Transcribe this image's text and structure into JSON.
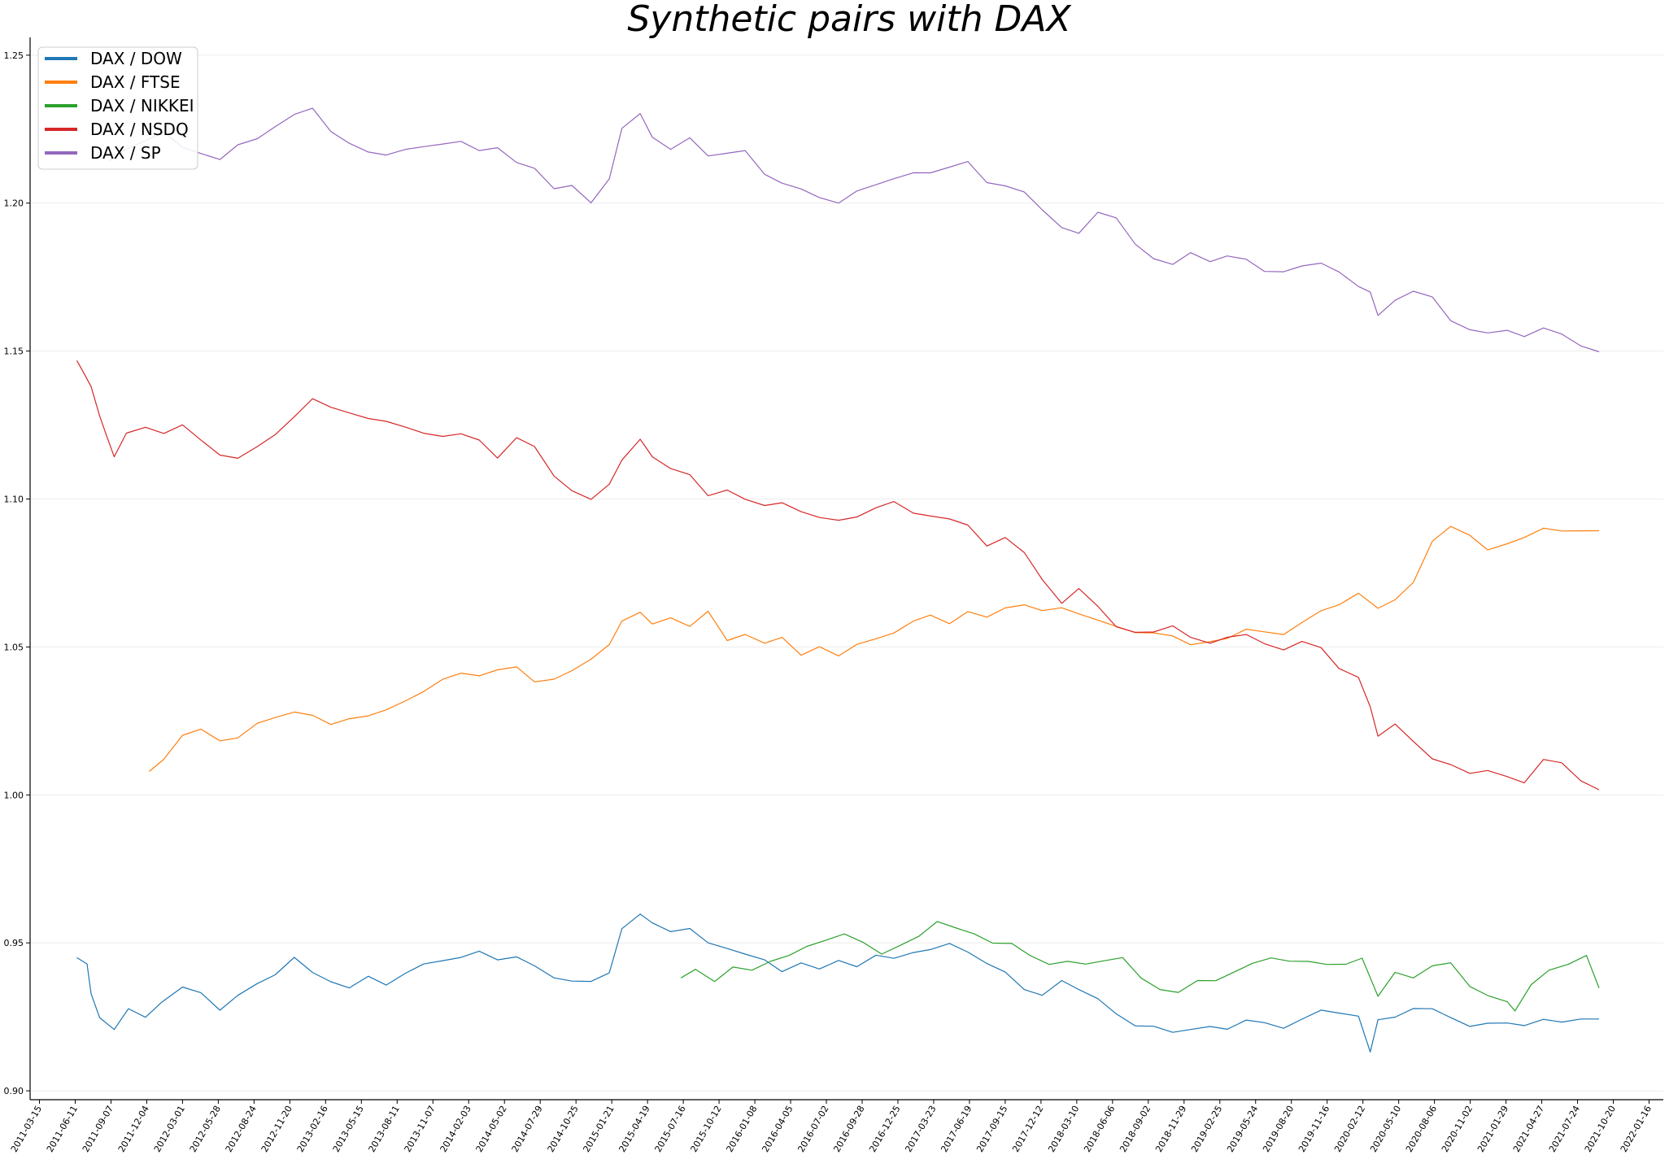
{
  "chart_data": {
    "type": "line",
    "title": "Synthetic pairs with DAX",
    "xlabel": "",
    "ylabel": "",
    "ylim": [
      0.897,
      1.256
    ],
    "xlim": [
      "2011-02-20",
      "2022-02-20"
    ],
    "grid": "horizontal-faint",
    "legend_placement": "top-left",
    "yticks": [
      "0.90",
      "0.95",
      "1.00",
      "1.05",
      "1.10",
      "1.15",
      "1.20",
      "1.25"
    ],
    "ytick_values": [
      0.9,
      0.95,
      1.0,
      1.05,
      1.1,
      1.15,
      1.2,
      1.25
    ],
    "xticks": [
      "2011-03-15",
      "2011-06-11",
      "2011-09-07",
      "2011-12-04",
      "2012-03-01",
      "2012-05-28",
      "2012-08-24",
      "2012-11-20",
      "2013-02-16",
      "2013-05-15",
      "2013-08-11",
      "2013-11-07",
      "2014-02-03",
      "2014-05-02",
      "2014-07-29",
      "2014-10-25",
      "2015-01-21",
      "2015-04-19",
      "2015-07-16",
      "2015-10-12",
      "2016-01-08",
      "2016-04-05",
      "2016-07-02",
      "2016-09-28",
      "2016-12-25",
      "2017-03-23",
      "2017-06-19",
      "2017-09-15",
      "2017-12-12",
      "2018-03-10",
      "2018-06-06",
      "2018-09-02",
      "2018-11-29",
      "2019-02-25",
      "2019-05-24",
      "2019-08-20",
      "2019-11-16",
      "2020-02-12",
      "2020-05-10",
      "2020-08-06",
      "2020-11-02",
      "2021-01-29",
      "2021-04-27",
      "2021-07-24",
      "2021-10-20",
      "2022-01-16"
    ],
    "series": [
      {
        "name": "DAX / DOW",
        "color": "#1f77b4",
        "x": [
          "2011-06-15",
          "2011-07-10",
          "2011-07-20",
          "2011-08-10",
          "2011-09-15",
          "2011-10-20",
          "2011-12-01",
          "2012-01-10",
          "2012-03-01",
          "2012-04-15",
          "2012-06-01",
          "2012-07-15",
          "2012-09-01",
          "2012-10-15",
          "2012-12-01",
          "2013-01-15",
          "2013-03-01",
          "2013-04-15",
          "2013-06-01",
          "2013-07-15",
          "2013-09-01",
          "2013-10-15",
          "2013-12-01",
          "2014-01-15",
          "2014-03-01",
          "2014-04-15",
          "2014-06-01",
          "2014-07-15",
          "2014-09-01",
          "2014-10-15",
          "2014-12-01",
          "2015-01-15",
          "2015-02-15",
          "2015-04-01",
          "2015-05-01",
          "2015-06-15",
          "2015-08-01",
          "2015-09-15",
          "2015-11-01",
          "2015-12-15",
          "2016-02-01",
          "2016-03-15",
          "2016-05-01",
          "2016-06-15",
          "2016-08-01",
          "2016-09-15",
          "2016-11-01",
          "2016-12-15",
          "2017-02-01",
          "2017-03-15",
          "2017-05-01",
          "2017-06-15",
          "2017-08-01",
          "2017-09-15",
          "2017-11-01",
          "2017-12-15",
          "2018-02-01",
          "2018-03-15",
          "2018-05-01",
          "2018-06-15",
          "2018-08-01",
          "2018-09-15",
          "2018-11-01",
          "2018-12-15",
          "2019-02-01",
          "2019-03-15",
          "2019-05-01",
          "2019-06-15",
          "2019-08-01",
          "2019-09-15",
          "2019-11-01",
          "2019-12-15",
          "2020-02-01",
          "2020-03-01",
          "2020-03-20",
          "2020-05-01",
          "2020-06-15",
          "2020-08-01",
          "2020-09-15",
          "2020-11-01",
          "2020-12-15",
          "2021-02-01",
          "2021-03-15",
          "2021-05-01",
          "2021-06-15",
          "2021-08-01",
          "2021-09-15"
        ],
        "values": [
          0.945,
          0.943,
          0.933,
          0.925,
          0.921,
          0.928,
          0.925,
          0.93,
          0.935,
          0.933,
          0.927,
          0.932,
          0.936,
          0.939,
          0.945,
          0.94,
          0.937,
          0.935,
          0.939,
          0.936,
          0.94,
          0.943,
          0.944,
          0.945,
          0.947,
          0.944,
          0.945,
          0.942,
          0.938,
          0.937,
          0.937,
          0.94,
          0.955,
          0.96,
          0.957,
          0.954,
          0.955,
          0.95,
          0.948,
          0.946,
          0.944,
          0.94,
          0.943,
          0.941,
          0.944,
          0.942,
          0.946,
          0.945,
          0.947,
          0.948,
          0.95,
          0.947,
          0.943,
          0.94,
          0.934,
          0.932,
          0.937,
          0.934,
          0.931,
          0.926,
          0.922,
          0.922,
          0.92,
          0.921,
          0.922,
          0.921,
          0.924,
          0.923,
          0.921,
          0.924,
          0.927,
          0.926,
          0.925,
          0.913,
          0.924,
          0.925,
          0.928,
          0.928,
          0.925,
          0.922,
          0.923,
          0.923,
          0.922,
          0.924,
          0.923,
          0.924,
          0.924
        ]
      },
      {
        "name": "DAX / FTSE",
        "color": "#ff7f0e",
        "x": [
          "2011-12-10",
          "2012-01-15",
          "2012-03-01",
          "2012-04-15",
          "2012-06-01",
          "2012-07-15",
          "2012-09-01",
          "2012-10-15",
          "2012-12-01",
          "2013-01-15",
          "2013-03-01",
          "2013-04-15",
          "2013-06-01",
          "2013-07-15",
          "2013-09-01",
          "2013-10-15",
          "2013-12-01",
          "2014-01-15",
          "2014-03-01",
          "2014-04-15",
          "2014-06-01",
          "2014-07-15",
          "2014-09-01",
          "2014-10-15",
          "2014-12-01",
          "2015-01-15",
          "2015-02-15",
          "2015-04-01",
          "2015-05-01",
          "2015-06-15",
          "2015-08-01",
          "2015-09-15",
          "2015-11-01",
          "2015-12-15",
          "2016-02-01",
          "2016-03-15",
          "2016-05-01",
          "2016-06-15",
          "2016-08-01",
          "2016-09-15",
          "2016-11-01",
          "2016-12-15",
          "2017-02-01",
          "2017-03-15",
          "2017-05-01",
          "2017-06-15",
          "2017-08-01",
          "2017-09-15",
          "2017-11-01",
          "2017-12-15",
          "2018-02-01",
          "2018-03-15",
          "2018-05-01",
          "2018-06-15",
          "2018-08-01",
          "2018-09-15",
          "2018-11-01",
          "2018-12-15",
          "2019-02-01",
          "2019-03-15",
          "2019-05-01",
          "2019-06-15",
          "2019-08-01",
          "2019-09-15",
          "2019-11-01",
          "2019-12-15",
          "2020-02-01",
          "2020-03-20",
          "2020-05-01",
          "2020-06-15",
          "2020-08-01",
          "2020-09-15",
          "2020-11-01",
          "2020-12-15",
          "2021-02-01",
          "2021-03-15",
          "2021-05-01",
          "2021-06-15",
          "2021-08-01",
          "2021-09-15"
        ],
        "values": [
          1.008,
          1.012,
          1.02,
          1.022,
          1.018,
          1.019,
          1.024,
          1.026,
          1.028,
          1.027,
          1.024,
          1.026,
          1.027,
          1.029,
          1.032,
          1.035,
          1.039,
          1.041,
          1.04,
          1.042,
          1.043,
          1.038,
          1.039,
          1.042,
          1.046,
          1.051,
          1.059,
          1.062,
          1.058,
          1.06,
          1.057,
          1.062,
          1.052,
          1.054,
          1.051,
          1.053,
          1.047,
          1.05,
          1.047,
          1.051,
          1.053,
          1.055,
          1.059,
          1.061,
          1.058,
          1.062,
          1.06,
          1.063,
          1.064,
          1.062,
          1.063,
          1.061,
          1.059,
          1.057,
          1.055,
          1.055,
          1.054,
          1.051,
          1.052,
          1.053,
          1.056,
          1.055,
          1.054,
          1.058,
          1.062,
          1.064,
          1.068,
          1.063,
          1.066,
          1.072,
          1.086,
          1.091,
          1.088,
          1.083,
          1.085,
          1.087,
          1.09,
          1.089,
          1.089,
          1.089
        ]
      },
      {
        "name": "DAX / NIKKEI",
        "color": "#2ca02c",
        "x": [
          "2015-07-10",
          "2015-08-15",
          "2015-10-01",
          "2015-11-15",
          "2016-01-01",
          "2016-02-15",
          "2016-04-01",
          "2016-05-15",
          "2016-07-01",
          "2016-08-15",
          "2016-10-01",
          "2016-11-15",
          "2017-01-01",
          "2017-02-15",
          "2017-04-01",
          "2017-05-15",
          "2017-07-01",
          "2017-08-15",
          "2017-10-01",
          "2017-11-15",
          "2018-01-01",
          "2018-02-15",
          "2018-04-01",
          "2018-05-15",
          "2018-07-01",
          "2018-08-15",
          "2018-10-01",
          "2018-11-15",
          "2019-01-01",
          "2019-02-15",
          "2019-04-01",
          "2019-05-15",
          "2019-07-01",
          "2019-08-15",
          "2019-10-01",
          "2019-11-15",
          "2020-01-01",
          "2020-02-10",
          "2020-03-20",
          "2020-05-01",
          "2020-06-15",
          "2020-08-01",
          "2020-09-15",
          "2020-11-01",
          "2020-12-15",
          "2021-02-01",
          "2021-02-20",
          "2021-04-01",
          "2021-05-15",
          "2021-07-01",
          "2021-08-15",
          "2021-09-15"
        ],
        "values": [
          0.938,
          0.941,
          0.937,
          0.942,
          0.941,
          0.944,
          0.946,
          0.949,
          0.951,
          0.953,
          0.95,
          0.946,
          0.949,
          0.952,
          0.957,
          0.955,
          0.953,
          0.95,
          0.95,
          0.946,
          0.943,
          0.944,
          0.943,
          0.944,
          0.945,
          0.938,
          0.934,
          0.933,
          0.937,
          0.937,
          0.94,
          0.943,
          0.945,
          0.944,
          0.944,
          0.943,
          0.943,
          0.945,
          0.932,
          0.94,
          0.938,
          0.942,
          0.943,
          0.935,
          0.932,
          0.93,
          0.927,
          0.936,
          0.941,
          0.943,
          0.946,
          0.935
        ]
      },
      {
        "name": "DAX / NSDQ",
        "color": "#d62728",
        "x": [
          "2011-06-15",
          "2011-07-01",
          "2011-07-20",
          "2011-08-10",
          "2011-08-25",
          "2011-09-15",
          "2011-10-15",
          "2011-12-01",
          "2012-01-15",
          "2012-03-01",
          "2012-04-15",
          "2012-06-01",
          "2012-07-15",
          "2012-09-01",
          "2012-10-15",
          "2012-12-01",
          "2013-01-15",
          "2013-03-01",
          "2013-04-15",
          "2013-06-01",
          "2013-07-15",
          "2013-09-01",
          "2013-10-15",
          "2013-12-01",
          "2014-01-15",
          "2014-03-01",
          "2014-04-15",
          "2014-06-01",
          "2014-07-15",
          "2014-09-01",
          "2014-10-15",
          "2014-12-01",
          "2015-01-15",
          "2015-02-15",
          "2015-04-01",
          "2015-05-01",
          "2015-06-15",
          "2015-08-01",
          "2015-09-15",
          "2015-11-01",
          "2015-12-15",
          "2016-02-01",
          "2016-03-15",
          "2016-05-01",
          "2016-06-15",
          "2016-08-01",
          "2016-09-15",
          "2016-11-01",
          "2016-12-15",
          "2017-02-01",
          "2017-03-15",
          "2017-05-01",
          "2017-06-15",
          "2017-08-01",
          "2017-09-15",
          "2017-11-01",
          "2017-12-15",
          "2018-02-01",
          "2018-03-15",
          "2018-05-01",
          "2018-06-15",
          "2018-08-01",
          "2018-09-15",
          "2018-11-01",
          "2018-12-15",
          "2019-02-01",
          "2019-03-15",
          "2019-05-01",
          "2019-06-15",
          "2019-08-01",
          "2019-09-15",
          "2019-11-01",
          "2019-12-15",
          "2020-02-01",
          "2020-03-01",
          "2020-03-20",
          "2020-05-01",
          "2020-06-15",
          "2020-08-01",
          "2020-09-15",
          "2020-11-01",
          "2020-12-15",
          "2021-02-01",
          "2021-03-15",
          "2021-05-01",
          "2021-06-15",
          "2021-08-01",
          "2021-09-15"
        ],
        "values": [
          1.147,
          1.143,
          1.138,
          1.128,
          1.122,
          1.114,
          1.122,
          1.124,
          1.122,
          1.125,
          1.12,
          1.115,
          1.114,
          1.118,
          1.122,
          1.128,
          1.134,
          1.131,
          1.129,
          1.127,
          1.126,
          1.124,
          1.122,
          1.121,
          1.122,
          1.12,
          1.114,
          1.121,
          1.118,
          1.108,
          1.103,
          1.1,
          1.105,
          1.113,
          1.12,
          1.114,
          1.11,
          1.108,
          1.101,
          1.103,
          1.1,
          1.098,
          1.099,
          1.096,
          1.094,
          1.093,
          1.094,
          1.097,
          1.099,
          1.095,
          1.094,
          1.093,
          1.091,
          1.084,
          1.087,
          1.082,
          1.073,
          1.065,
          1.07,
          1.064,
          1.057,
          1.055,
          1.055,
          1.057,
          1.053,
          1.051,
          1.053,
          1.054,
          1.051,
          1.049,
          1.052,
          1.05,
          1.043,
          1.04,
          1.03,
          1.02,
          1.024,
          1.018,
          1.012,
          1.01,
          1.007,
          1.008,
          1.006,
          1.004,
          1.012,
          1.011,
          1.005,
          1.002
        ]
      },
      {
        "name": "DAX / SP",
        "color": "#9467bd",
        "x": [
          "2011-09-01",
          "2011-10-15",
          "2011-12-01",
          "2012-01-15",
          "2012-03-01",
          "2012-04-15",
          "2012-06-01",
          "2012-07-15",
          "2012-09-01",
          "2012-10-15",
          "2012-12-01",
          "2013-01-15",
          "2013-03-01",
          "2013-04-15",
          "2013-06-01",
          "2013-07-15",
          "2013-09-01",
          "2013-10-15",
          "2013-12-01",
          "2014-01-15",
          "2014-03-01",
          "2014-04-15",
          "2014-06-01",
          "2014-07-15",
          "2014-09-01",
          "2014-10-15",
          "2014-12-01",
          "2015-01-15",
          "2015-02-15",
          "2015-04-01",
          "2015-05-01",
          "2015-06-15",
          "2015-08-01",
          "2015-09-15",
          "2015-11-01",
          "2015-12-15",
          "2016-02-01",
          "2016-03-15",
          "2016-05-01",
          "2016-06-15",
          "2016-08-01",
          "2016-09-15",
          "2016-11-01",
          "2016-12-15",
          "2017-02-01",
          "2017-03-15",
          "2017-05-01",
          "2017-06-15",
          "2017-08-01",
          "2017-09-15",
          "2017-11-01",
          "2017-12-15",
          "2018-02-01",
          "2018-03-15",
          "2018-05-01",
          "2018-06-15",
          "2018-08-01",
          "2018-09-15",
          "2018-11-01",
          "2018-12-15",
          "2019-02-01",
          "2019-03-15",
          "2019-05-01",
          "2019-06-15",
          "2019-08-01",
          "2019-09-15",
          "2019-11-01",
          "2019-12-15",
          "2020-02-01",
          "2020-03-01",
          "2020-03-20",
          "2020-05-01",
          "2020-06-15",
          "2020-08-01",
          "2020-09-15",
          "2020-11-01",
          "2020-12-15",
          "2021-02-01",
          "2021-03-15",
          "2021-05-01",
          "2021-06-15",
          "2021-08-01",
          "2021-09-15"
        ],
        "values": [
          1.214,
          1.218,
          1.221,
          1.224,
          1.219,
          1.217,
          1.215,
          1.22,
          1.222,
          1.226,
          1.23,
          1.232,
          1.224,
          1.22,
          1.217,
          1.216,
          1.218,
          1.219,
          1.22,
          1.221,
          1.218,
          1.219,
          1.214,
          1.212,
          1.205,
          1.206,
          1.2,
          1.208,
          1.225,
          1.23,
          1.222,
          1.218,
          1.222,
          1.216,
          1.217,
          1.218,
          1.21,
          1.207,
          1.205,
          1.202,
          1.2,
          1.204,
          1.206,
          1.208,
          1.21,
          1.21,
          1.212,
          1.214,
          1.207,
          1.206,
          1.204,
          1.198,
          1.192,
          1.19,
          1.197,
          1.195,
          1.186,
          1.181,
          1.179,
          1.183,
          1.18,
          1.182,
          1.181,
          1.177,
          1.177,
          1.179,
          1.18,
          1.177,
          1.172,
          1.17,
          1.162,
          1.167,
          1.17,
          1.168,
          1.16,
          1.157,
          1.156,
          1.157,
          1.155,
          1.158,
          1.156,
          1.152,
          1.15
        ]
      }
    ]
  }
}
